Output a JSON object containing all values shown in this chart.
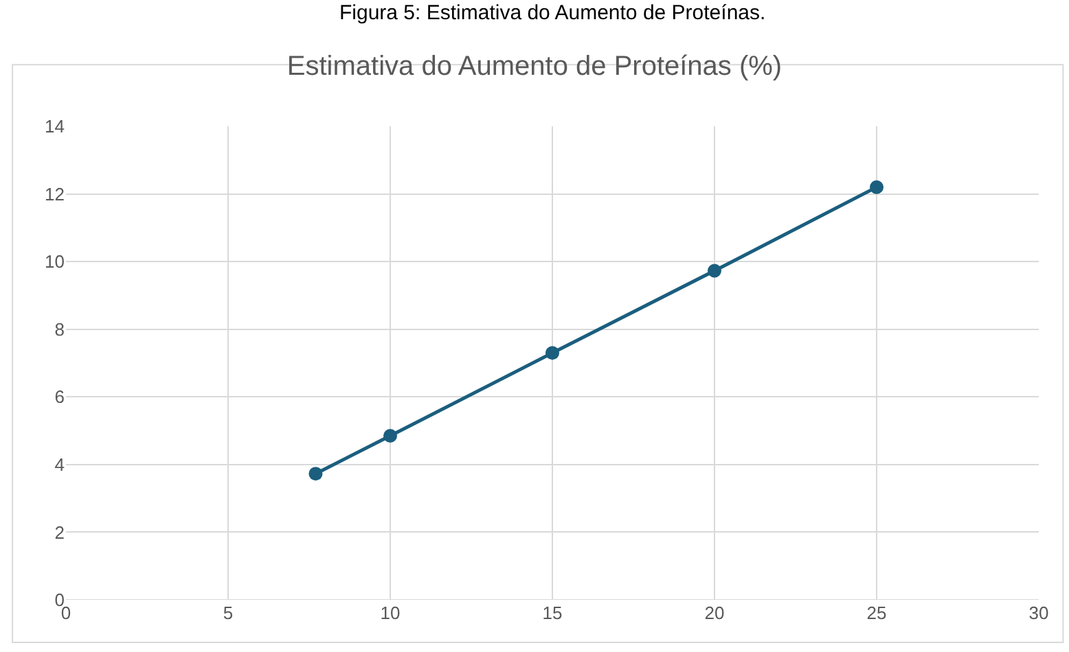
{
  "chart_data": {
    "type": "line",
    "title": "Estimativa do Aumento de Proteínas (%)",
    "annotations": [
      "Figura 5: Estimativa do Aumento de Proteínas."
    ],
    "x": [
      7.7,
      10,
      15,
      20,
      25
    ],
    "series": [
      {
        "color": "#1b5e7e",
        "values": [
          3.73,
          4.85,
          7.3,
          9.73,
          12.2
        ]
      }
    ],
    "xlim": [
      0,
      30
    ],
    "xticks": [
      0,
      5,
      10,
      15,
      20,
      25,
      30
    ],
    "ylim": [
      0,
      14
    ],
    "yticks": [
      0,
      2,
      4,
      6,
      8,
      10,
      12,
      14
    ],
    "grid": true,
    "marker": "circle",
    "line_style": "solid"
  }
}
